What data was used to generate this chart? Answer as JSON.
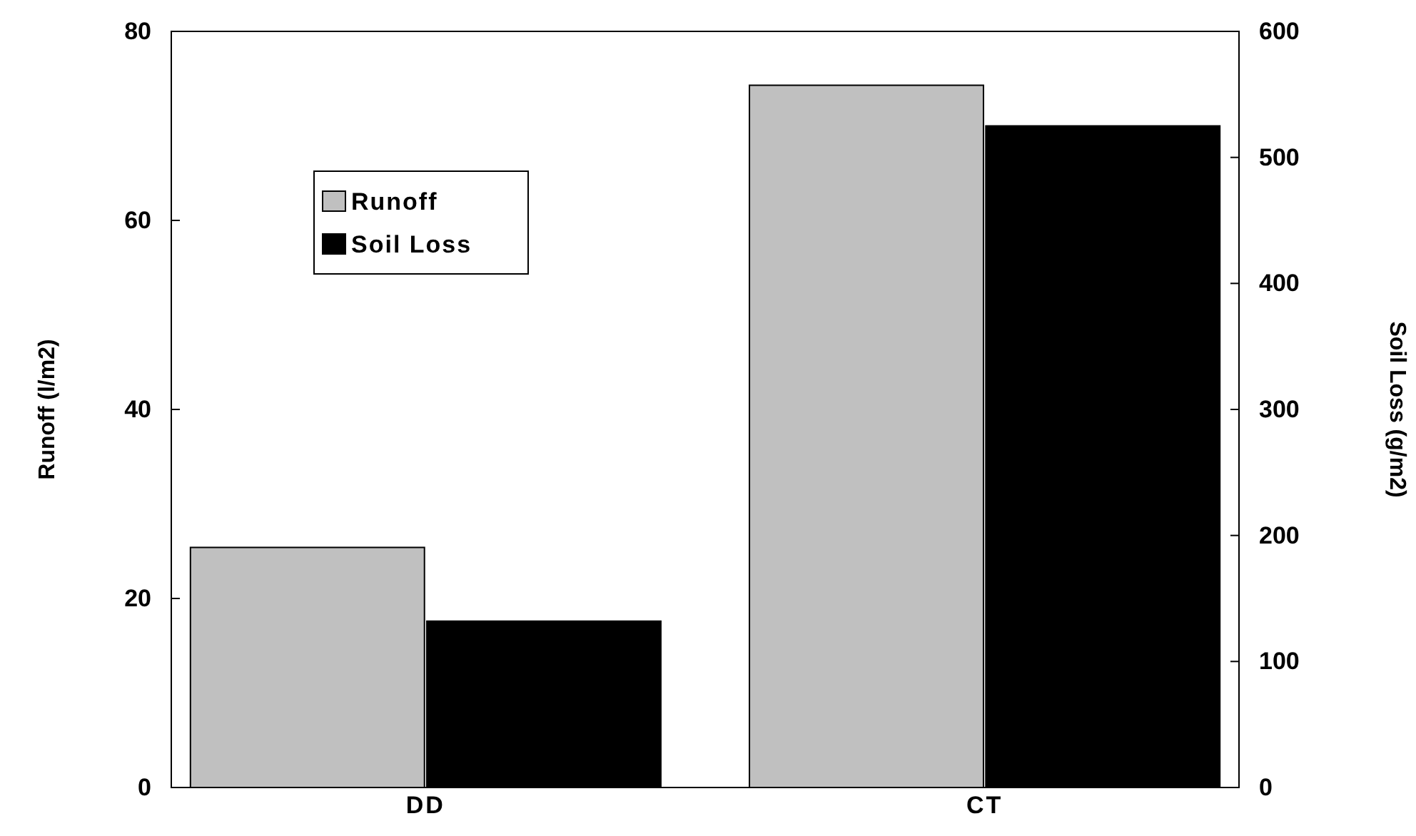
{
  "chart_data": {
    "type": "bar",
    "categories": [
      "DD",
      "CT"
    ],
    "series": [
      {
        "name": "Runoff",
        "color": "#c0c0c0",
        "values": [
          25.4,
          74.3
        ]
      },
      {
        "name": "Soil Loss",
        "color": "#000000",
        "values": [
          132,
          525
        ],
        "axis": "y2"
      }
    ],
    "ylabel": "Runoff (l/m2)",
    "y2label": "Soil Loss (g/m2)",
    "ylim": [
      0,
      80
    ],
    "yticks": [
      0,
      20,
      40,
      60,
      80
    ],
    "y2lim": [
      0,
      600
    ],
    "y2ticks": [
      0,
      100,
      200,
      300,
      400,
      500,
      600
    ],
    "legend": "top left",
    "grid": false
  }
}
